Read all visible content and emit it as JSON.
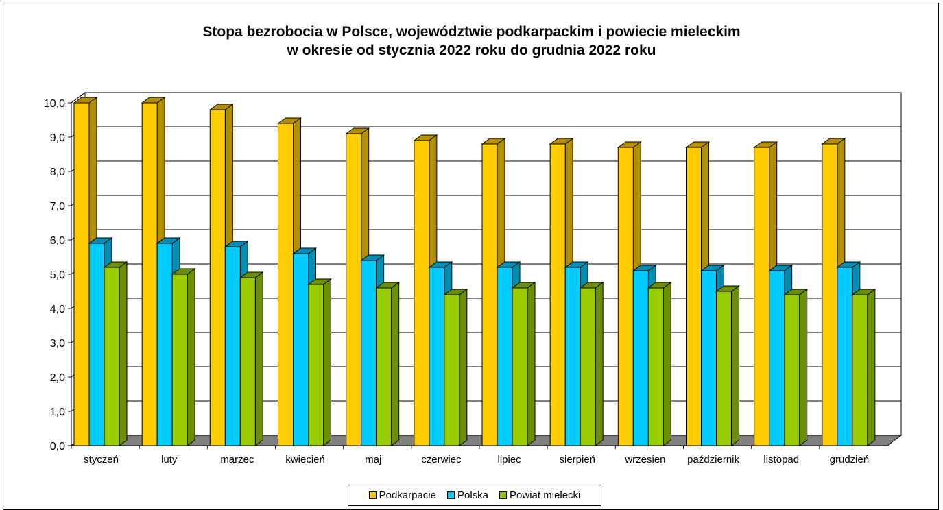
{
  "chart_data": {
    "type": "bar",
    "title_line1": "Stopa bezrobocia w Polsce, województwie podkarpackim i powiecie mieleckim",
    "title_line2": "w okresie od stycznia 2022 roku do grudnia 2022 roku",
    "categories": [
      "styczeń",
      "luty",
      "marzec",
      "kwiecień",
      "maj",
      "czerwiec",
      "lipiec",
      "sierpień",
      "wrzesien",
      "październik",
      "listopad",
      "grudzień"
    ],
    "series": [
      {
        "name": "Podkarpacie",
        "color": "#FFCC00",
        "side": "#B38F00",
        "values": [
          10.0,
          10.0,
          9.8,
          9.4,
          9.1,
          8.9,
          8.8,
          8.8,
          8.7,
          8.7,
          8.7,
          8.8
        ]
      },
      {
        "name": "Polska",
        "color": "#00CCFF",
        "side": "#008FB3",
        "values": [
          5.9,
          5.9,
          5.8,
          5.6,
          5.4,
          5.2,
          5.2,
          5.2,
          5.1,
          5.1,
          5.1,
          5.2
        ]
      },
      {
        "name": "Powiat mielecki",
        "color": "#99CC00",
        "side": "#6B8F00",
        "values": [
          5.2,
          5.0,
          4.9,
          4.7,
          4.6,
          4.4,
          4.6,
          4.6,
          4.6,
          4.5,
          4.4,
          4.4
        ]
      }
    ],
    "yticks": [
      "0,0",
      "1,0",
      "2,0",
      "3,0",
      "4,0",
      "5,0",
      "6,0",
      "7,0",
      "8,0",
      "9,0",
      "10,0"
    ],
    "ylim": [
      0,
      10
    ],
    "grid": true,
    "legend_position": "bottom"
  }
}
